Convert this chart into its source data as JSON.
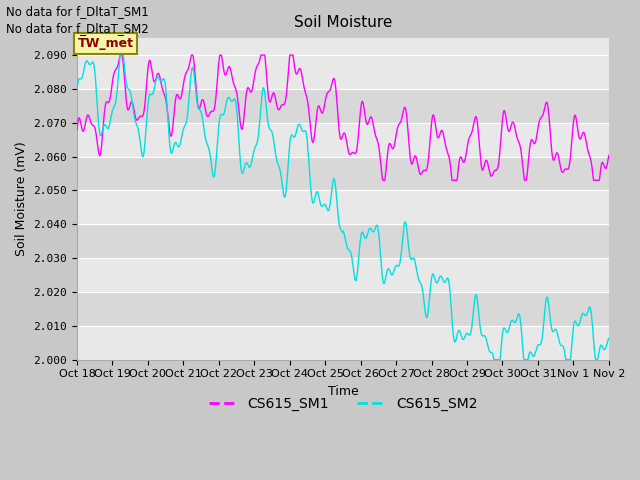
{
  "title": "Soil Moisture",
  "ylabel": "Soil Moisture (mV)",
  "xlabel": "Time",
  "annotations": [
    "No data for f_DltaT_SM1",
    "No data for f_DltaT_SM2"
  ],
  "legend_box_label": "TW_met",
  "legend_entries": [
    "CS615_SM1",
    "CS615_SM2"
  ],
  "color_sm1": "#ff00ff",
  "color_sm2": "#00e0e0",
  "ylim": [
    2.0,
    2.095
  ],
  "yticks": [
    2.0,
    2.01,
    2.02,
    2.03,
    2.04,
    2.05,
    2.06,
    2.07,
    2.08,
    2.09
  ],
  "x_tick_labels": [
    "Oct 18",
    "Oct 19",
    "Oct 20",
    "Oct 21",
    "Oct 22",
    "Oct 23",
    "Oct 24",
    "Oct 25",
    "Oct 26",
    "Oct 27",
    "Oct 28",
    "Oct 29",
    "Oct 30",
    "Oct 31",
    "Nov 1",
    "Nov 2"
  ],
  "band_colors": [
    "#e8e8e8",
    "#d8d8d8"
  ],
  "grid_color": "#ffffff",
  "fig_facecolor": "#c8c8c8"
}
